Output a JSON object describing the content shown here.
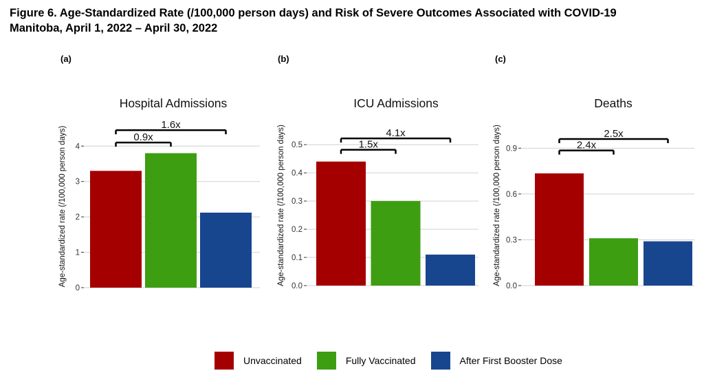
{
  "figure": {
    "title_line1": "Figure 6. Age-Standardized Rate (/100,000 person days) and Risk of Severe Outcomes Associated with COVID-19",
    "title_line2": "Manitoba, April 1, 2022 – April 30, 2022"
  },
  "colors": {
    "unvaccinated": "#a50000",
    "fully_vaccinated": "#3d9e12",
    "booster": "#17468f",
    "grid": "#d0d0d0",
    "axis_text": "#333333"
  },
  "legend": {
    "items": [
      {
        "label": "Unvaccinated",
        "color": "#a50000"
      },
      {
        "label": "Fully Vaccinated",
        "color": "#3d9e12"
      },
      {
        "label": "After First Booster Dose",
        "color": "#17468f"
      }
    ]
  },
  "chart_data": [
    {
      "type": "bar",
      "panel_label": "(a)",
      "title": "Hospital Admissions",
      "ylabel": "Age-standardized rate (/100,000 person days)",
      "xlabel": "",
      "categories": [
        "Unvaccinated",
        "Fully Vaccinated",
        "After First Booster Dose"
      ],
      "values": [
        3.3,
        3.8,
        2.12
      ],
      "ylim": [
        0,
        4.2
      ],
      "yticks": [
        0,
        1,
        2,
        3,
        4
      ],
      "ytick_labels": [
        "0",
        "1",
        "2",
        "3",
        "4"
      ],
      "grid": true,
      "annotations": [
        {
          "text": "0.9x",
          "from": 0,
          "to": 1,
          "level": 4.1
        },
        {
          "text": "1.6x",
          "from": 0,
          "to": 2,
          "level": 4.45
        }
      ]
    },
    {
      "type": "bar",
      "panel_label": "(b)",
      "title": "ICU Admissions",
      "ylabel": "Age-standardized rate (/100,000 person days)",
      "xlabel": "",
      "categories": [
        "Unvaccinated",
        "Fully Vaccinated",
        "After First Booster Dose"
      ],
      "values": [
        0.44,
        0.3,
        0.11
      ],
      "ylim": [
        0,
        0.52
      ],
      "yticks": [
        0,
        0.1,
        0.2,
        0.3,
        0.4,
        0.5
      ],
      "ytick_labels": [
        "0.0",
        "0.1",
        "0.2",
        "0.3",
        "0.4",
        "0.5"
      ],
      "grid": true,
      "annotations": [
        {
          "text": "1.5x",
          "from": 0,
          "to": 1,
          "level": 0.482
        },
        {
          "text": "4.1x",
          "from": 0,
          "to": 2,
          "level": 0.522
        }
      ]
    },
    {
      "type": "bar",
      "panel_label": "(c)",
      "title": "Deaths",
      "ylabel": "Age-standardized rate (/100,000 person days)",
      "xlabel": "",
      "categories": [
        "Unvaccinated",
        "Fully Vaccinated",
        "After First Booster Dose"
      ],
      "values": [
        0.735,
        0.31,
        0.29
      ],
      "ylim": [
        0,
        0.96
      ],
      "yticks": [
        0,
        0.3,
        0.6,
        0.9
      ],
      "ytick_labels": [
        "0.0",
        "0.3",
        "0.6",
        "0.9"
      ],
      "grid": true,
      "annotations": [
        {
          "text": "2.4x",
          "from": 0,
          "to": 1,
          "level": 0.885
        },
        {
          "text": "2.5x",
          "from": 0,
          "to": 2,
          "level": 0.96
        }
      ]
    }
  ]
}
